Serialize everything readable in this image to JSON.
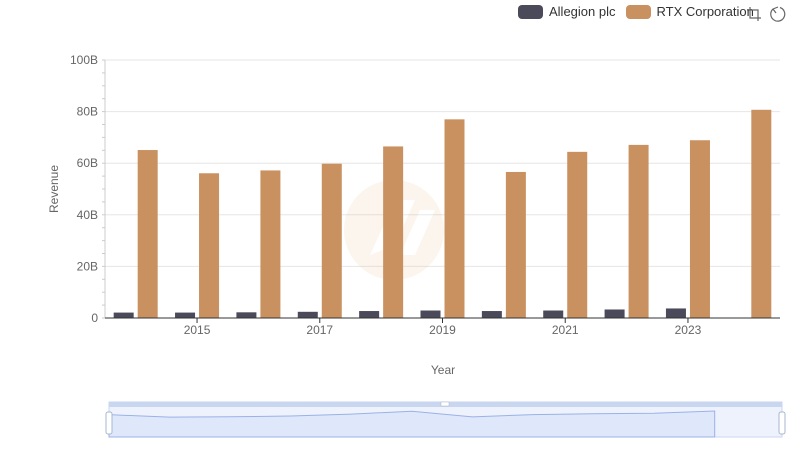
{
  "legend": {
    "series_a": "Allegion plc",
    "series_b": "RTX Corporation"
  },
  "toolbox": {
    "zoom_icon": "zoom-icon",
    "restore_icon": "restore-icon"
  },
  "colors": {
    "allegion": "#4a4a5a",
    "rtx": "#c99060",
    "grid": "#e6e6e6",
    "datazoom_fill": "#dfe7fb",
    "datazoom_border": "#c9d6ef",
    "datazoom_line": "#9bb2e6"
  },
  "chart_data": {
    "type": "bar",
    "title": "",
    "xlabel": "Year",
    "ylabel": "Revenue",
    "ylim": [
      0,
      100
    ],
    "y_unit": "B",
    "y_ticks": [
      "0",
      "20B",
      "40B",
      "60B",
      "80B",
      "100B"
    ],
    "categories": [
      "2014",
      "2015",
      "2016",
      "2017",
      "2018",
      "2019",
      "2020",
      "2021",
      "2022",
      "2023",
      "2024"
    ],
    "x_tick_labels": [
      "2015",
      "2017",
      "2019",
      "2021",
      "2023"
    ],
    "series": [
      {
        "name": "Allegion plc",
        "values": [
          2.1,
          2.1,
          2.2,
          2.4,
          2.7,
          2.9,
          2.7,
          2.9,
          3.3,
          3.7,
          null
        ]
      },
      {
        "name": "RTX Corporation",
        "values": [
          65.1,
          56.1,
          57.2,
          59.8,
          66.5,
          77.0,
          56.6,
          64.4,
          67.1,
          68.9,
          80.7
        ]
      }
    ]
  }
}
